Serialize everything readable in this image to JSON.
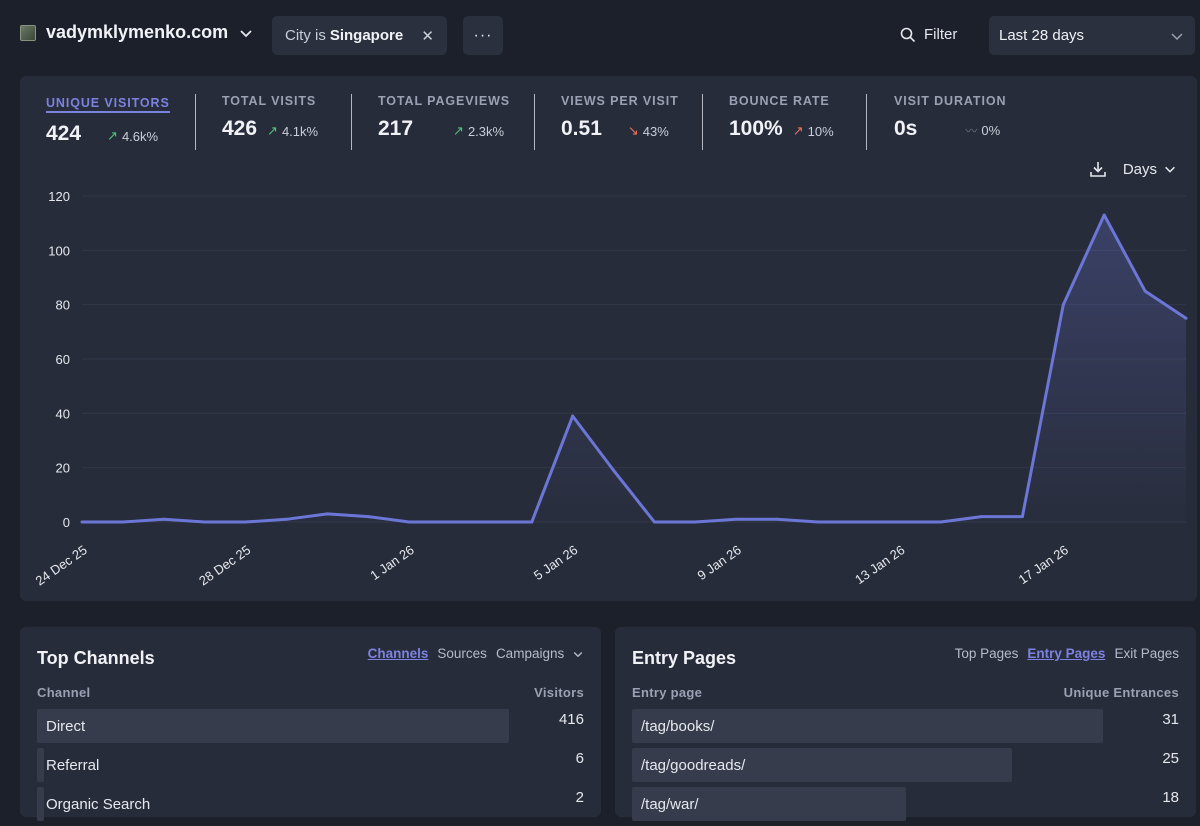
{
  "header": {
    "site_name": "vadymklymenko.com",
    "filter_prefix": "City is",
    "filter_value": "Singapore",
    "more_label": "···",
    "filter_button": "Filter",
    "date_range": "Last 28 days"
  },
  "stats": [
    {
      "label": "Unique visitors",
      "value": "424",
      "change": "4.6k%",
      "trend": "up"
    },
    {
      "label": "Total visits",
      "value": "426",
      "change": "4.1k%",
      "trend": "up"
    },
    {
      "label": "Total pageviews",
      "value": "217",
      "change": "2.3k%",
      "trend": "up"
    },
    {
      "label": "Views per visit",
      "value": "0.51",
      "change": "43%",
      "trend": "down"
    },
    {
      "label": "Bounce rate",
      "value": "100%",
      "change": "10%",
      "trend": "up-bad"
    },
    {
      "label": "Visit duration",
      "value": "0s",
      "change": "0%",
      "trend": "flat"
    }
  ],
  "chart_tools": {
    "interval": "Days"
  },
  "chart_data": {
    "type": "area",
    "title": "",
    "xlabel": "",
    "ylabel": "",
    "ylim": [
      0,
      120
    ],
    "yticks": [
      0,
      20,
      40,
      60,
      80,
      100,
      120
    ],
    "x_tick_labels": [
      "24 Dec 25",
      "28 Dec 25",
      "1 Jan 26",
      "5 Jan 26",
      "9 Jan 26",
      "13 Jan 26",
      "17 Jan 26"
    ],
    "x": [
      "24 Dec",
      "25 Dec",
      "26 Dec",
      "27 Dec",
      "28 Dec",
      "29 Dec",
      "30 Dec",
      "31 Dec",
      "1 Jan",
      "2 Jan",
      "3 Jan",
      "4 Jan",
      "5 Jan",
      "6 Jan",
      "7 Jan",
      "8 Jan",
      "9 Jan",
      "10 Jan",
      "11 Jan",
      "12 Jan",
      "13 Jan",
      "14 Jan",
      "15 Jan",
      "16 Jan",
      "17 Jan",
      "18 Jan",
      "19 Jan",
      "20 Jan"
    ],
    "series": [
      {
        "name": "Unique visitors",
        "values": [
          0,
          0,
          1,
          0,
          0,
          1,
          3,
          2,
          0,
          0,
          0,
          0,
          39,
          19,
          0,
          0,
          1,
          1,
          0,
          0,
          0,
          0,
          2,
          2,
          80,
          113,
          85,
          75
        ]
      }
    ]
  },
  "top_channels": {
    "title": "Top Channels",
    "tabs": [
      "Channels",
      "Sources",
      "Campaigns"
    ],
    "col_label": "Channel",
    "col_value": "Visitors",
    "rows": [
      {
        "label": "Direct",
        "value": "416",
        "share": 1.0
      },
      {
        "label": "Referral",
        "value": "6",
        "share": 0.015
      },
      {
        "label": "Organic Search",
        "value": "2",
        "share": 0.005
      }
    ]
  },
  "entry_pages": {
    "title": "Entry Pages",
    "tabs": [
      "Top Pages",
      "Entry Pages",
      "Exit Pages"
    ],
    "col_label": "Entry page",
    "col_value": "Unique Entrances",
    "rows": [
      {
        "label": "/tag/books/",
        "value": "31",
        "share": 1.0
      },
      {
        "label": "/tag/goodreads/",
        "value": "25",
        "share": 0.806
      },
      {
        "label": "/tag/war/",
        "value": "18",
        "share": 0.581
      }
    ]
  },
  "colors": {
    "accent": "#7c82e0",
    "line": "#6b76d6",
    "bg": "#1c202b",
    "card": "#272c3a"
  }
}
